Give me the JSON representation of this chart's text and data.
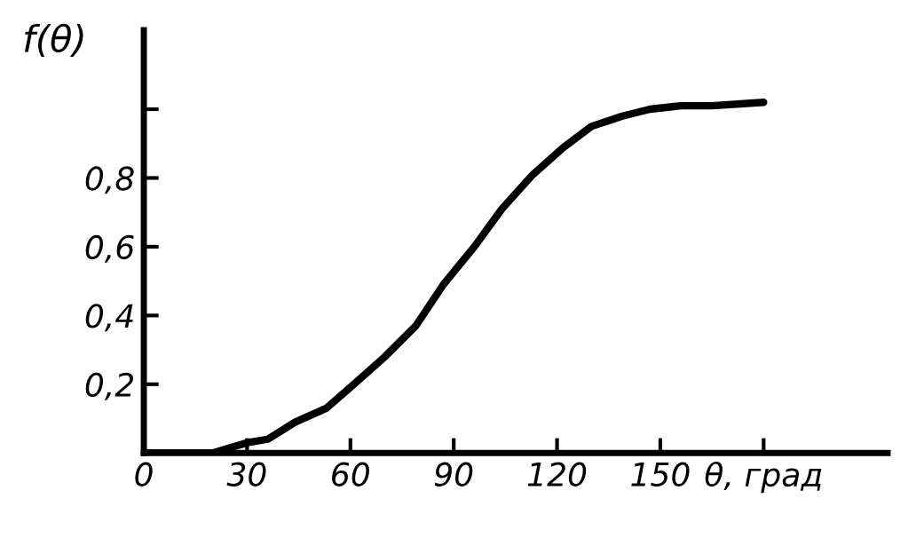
{
  "chart_data": {
    "type": "line",
    "ylabel": "f(θ)",
    "x": [
      0,
      20,
      30,
      36,
      44,
      53,
      61,
      70,
      79,
      87,
      96,
      104,
      113,
      122,
      130,
      139,
      147,
      156,
      165,
      180
    ],
    "series": [
      {
        "color": "#000000",
        "values": [
          0,
          0.0,
          0.03,
          0.04,
          0.09,
          0.13,
          0.2,
          0.28,
          0.37,
          0.49,
          0.6,
          0.71,
          0.81,
          0.89,
          0.95,
          0.98,
          1.0,
          1.01,
          1.01,
          1.02
        ]
      }
    ],
    "xlim": [
      0,
      216
    ],
    "ylim": [
      0,
      1.23
    ],
    "xticks": [
      0,
      30,
      60,
      90,
      120,
      150,
      {
        "value": 180,
        "label": "θ, град"
      }
    ],
    "yticks": [
      {
        "value": 0.2,
        "label": "0,2"
      },
      {
        "value": 0.4,
        "label": "0,4"
      },
      {
        "value": 0.6,
        "label": "0,6"
      },
      {
        "value": 0.8,
        "label": "0,8"
      },
      {
        "value": 1.0,
        "label": null
      }
    ],
    "grid": false,
    "legend": false,
    "marker": "none",
    "line_style": "solid"
  }
}
